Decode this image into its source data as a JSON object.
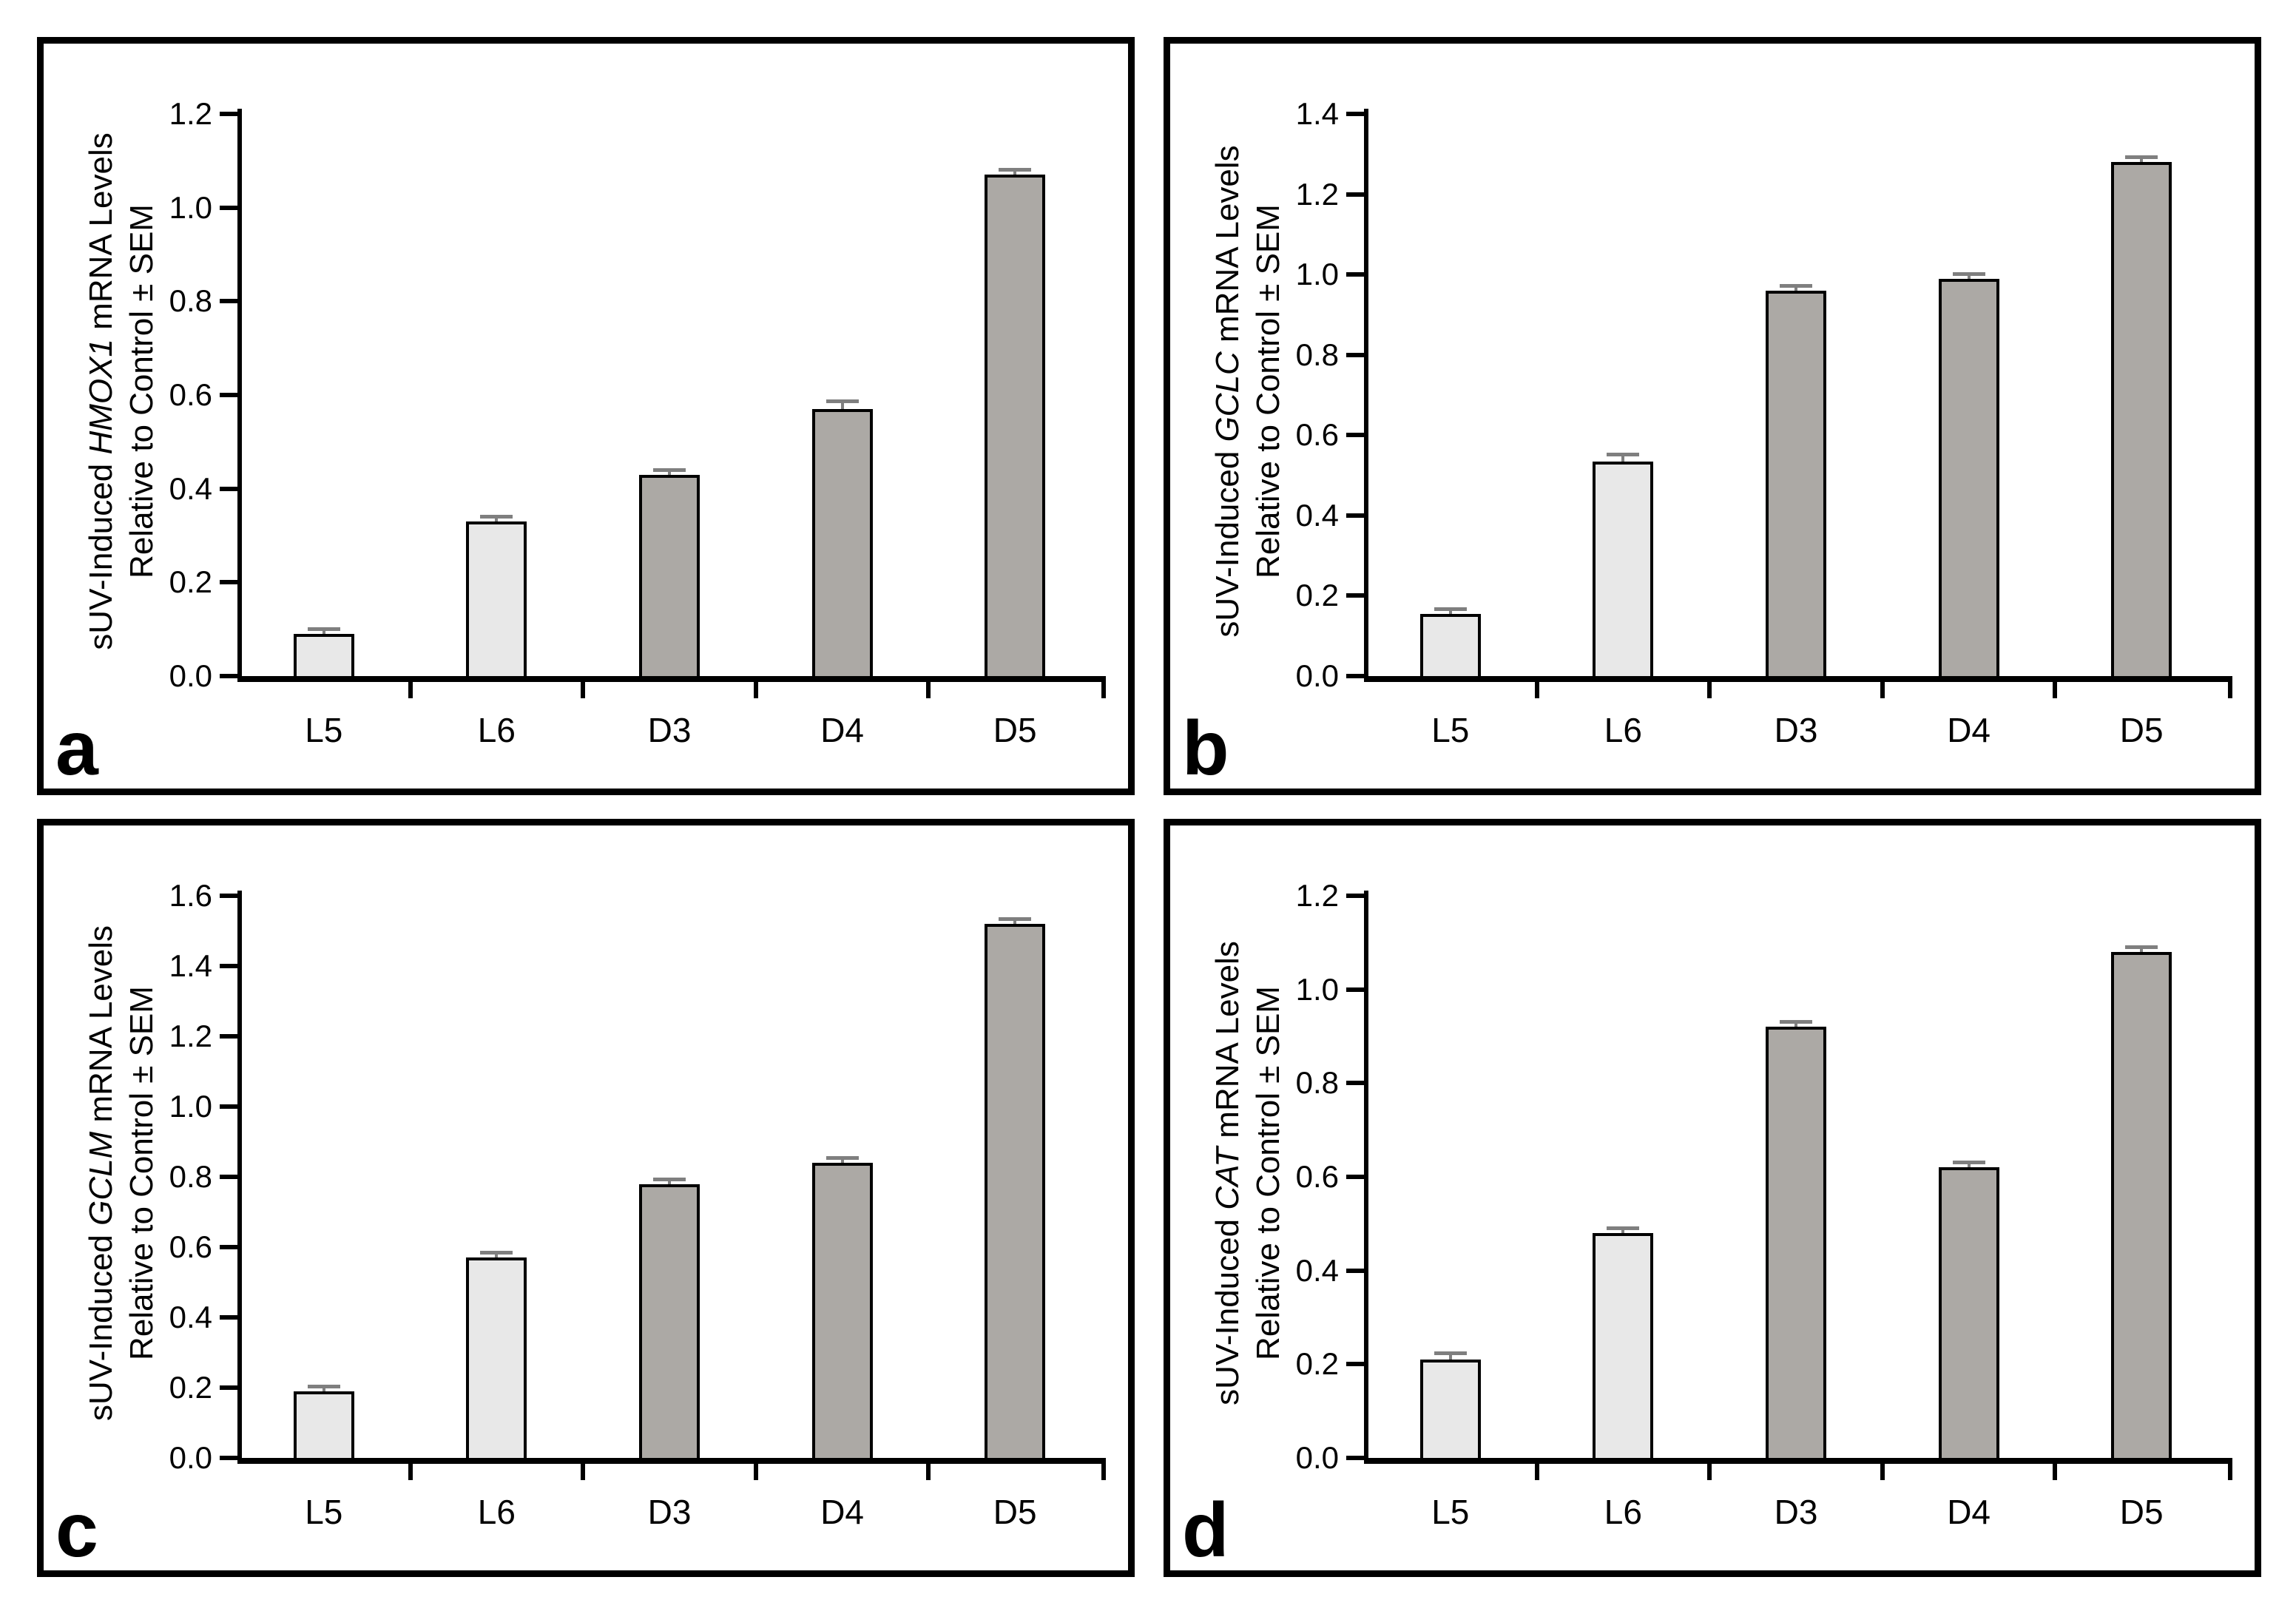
{
  "figure": {
    "description": "Four-panel bar chart figure of sUV-induced antioxidant gene mRNA levels",
    "categories": [
      "L5",
      "L6",
      "D3",
      "D4",
      "D5"
    ],
    "ylabel_line2": "Relative to Control ± SEM",
    "panel_letters": [
      "a",
      "b",
      "c",
      "d"
    ]
  },
  "style": {
    "light_bar": "#E8E8E8",
    "dark_bar": "#ACA9A5",
    "bar_outline": "#000000",
    "error_bar": "#7F7F7F",
    "axis": "#000000",
    "background": "#FFFFFF"
  },
  "chart_data": [
    {
      "type": "bar",
      "panel_letter": "a",
      "gene": "HMOX1",
      "ylabel_line1_prefix": "sUV-Induced ",
      "ylabel_line1_suffix": " mRNA Levels",
      "ylabel_line2": "Relative to Control ± SEM",
      "categories": [
        "L5",
        "L6",
        "D3",
        "D4",
        "D5"
      ],
      "values": [
        0.09,
        0.33,
        0.43,
        0.57,
        1.07
      ],
      "sem": [
        0.005,
        0.006,
        0.004,
        0.013,
        0.005
      ],
      "bar_shades": [
        "light",
        "light",
        "dark",
        "dark",
        "dark"
      ],
      "ylim": [
        0.0,
        1.2
      ],
      "ytick_step": 0.2,
      "ytick_labels": [
        "0.0",
        "0.2",
        "0.4",
        "0.6",
        "0.8",
        "1.0",
        "1.2"
      ],
      "grid": false,
      "legend": "none"
    },
    {
      "type": "bar",
      "panel_letter": "b",
      "gene": "GCLC",
      "ylabel_line1_prefix": "sUV-Induced ",
      "ylabel_line1_suffix": " mRNA Levels",
      "ylabel_line2": "Relative to Control ± SEM",
      "categories": [
        "L5",
        "L6",
        "D3",
        "D4",
        "D5"
      ],
      "values": [
        0.155,
        0.535,
        0.96,
        0.99,
        1.28
      ],
      "sem": [
        0.006,
        0.013,
        0.005,
        0.005,
        0.006
      ],
      "bar_shades": [
        "light",
        "light",
        "dark",
        "dark",
        "dark"
      ],
      "ylim": [
        0.0,
        1.4
      ],
      "ytick_step": 0.2,
      "ytick_labels": [
        "0.0",
        "0.2",
        "0.4",
        "0.6",
        "0.8",
        "1.0",
        "1.2",
        "1.4"
      ],
      "grid": false,
      "legend": "none"
    },
    {
      "type": "bar",
      "panel_letter": "c",
      "gene": "GCLM",
      "ylabel_line1_prefix": "sUV-Induced ",
      "ylabel_line1_suffix": " mRNA Levels",
      "ylabel_line2": "Relative to Control ± SEM",
      "categories": [
        "L5",
        "L6",
        "D3",
        "D4",
        "D5"
      ],
      "values": [
        0.19,
        0.57,
        0.78,
        0.84,
        1.52
      ],
      "sem": [
        0.008,
        0.004,
        0.004,
        0.007,
        0.006
      ],
      "bar_shades": [
        "light",
        "light",
        "dark",
        "dark",
        "dark"
      ],
      "ylim": [
        0.0,
        1.6
      ],
      "ytick_step": 0.2,
      "ytick_labels": [
        "0.0",
        "0.2",
        "0.4",
        "0.6",
        "0.8",
        "1.0",
        "1.2",
        "1.4",
        "1.6"
      ],
      "grid": false,
      "legend": "none"
    },
    {
      "type": "bar",
      "panel_letter": "d",
      "gene": "CAT",
      "ylabel_line1_prefix": "sUV-Induced ",
      "ylabel_line1_suffix": " mRNA Levels",
      "ylabel_line2": "Relative to Control ± SEM",
      "categories": [
        "L5",
        "L6",
        "D3",
        "D4",
        "D5"
      ],
      "values": [
        0.21,
        0.48,
        0.92,
        0.62,
        1.08
      ],
      "sem": [
        0.01,
        0.006,
        0.006,
        0.005,
        0.006
      ],
      "bar_shades": [
        "light",
        "light",
        "dark",
        "dark",
        "dark"
      ],
      "ylim": [
        0.0,
        1.2
      ],
      "ytick_step": 0.2,
      "ytick_labels": [
        "0.0",
        "0.2",
        "0.4",
        "0.6",
        "0.8",
        "1.0",
        "1.2"
      ],
      "grid": false,
      "legend": "none"
    }
  ]
}
